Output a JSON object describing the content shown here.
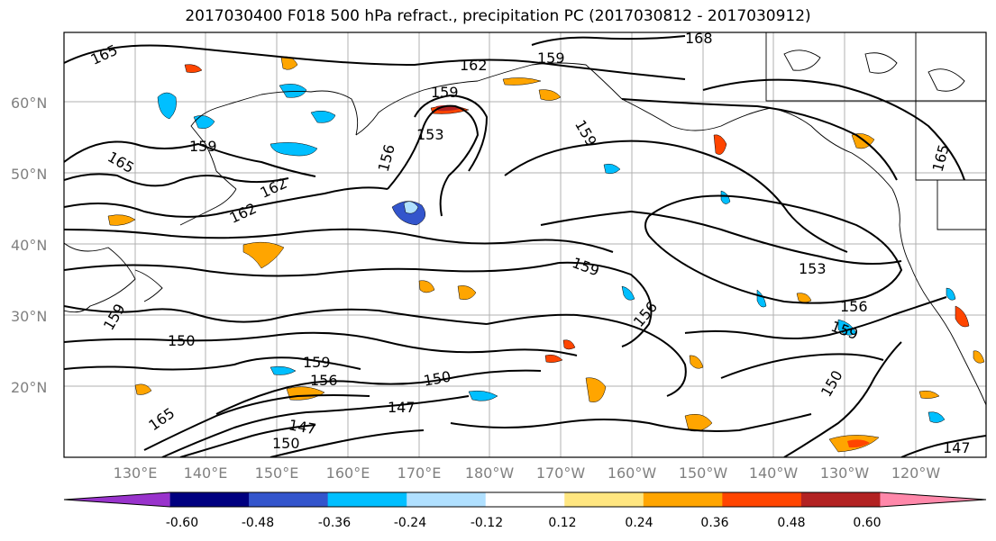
{
  "title": "2017030400 F018 500 hPa refract., precipitation PC (2017030812 - 2017030912)",
  "lat_labels": [
    "60°N",
    "50°N",
    "40°N",
    "30°N",
    "20°N"
  ],
  "lon_labels": [
    "130°E",
    "140°E",
    "150°E",
    "160°E",
    "170°E",
    "180°W",
    "170°W",
    "160°W",
    "150°W",
    "140°W",
    "130°W",
    "120°W"
  ],
  "colorbar": {
    "colors": [
      "#9933cc",
      "#000080",
      "#3355cc",
      "#00bfff",
      "#b0e0ff",
      "#ffffff",
      "#ffe680",
      "#ffa500",
      "#ff4500",
      "#b22222",
      "#ff88aa"
    ],
    "tick_labels": [
      "-0.60",
      "-0.48",
      "-0.36",
      "-0.24",
      "-0.12",
      "0.12",
      "0.24",
      "0.36",
      "0.48",
      "0.60"
    ]
  },
  "contour_labels": [
    "165",
    "162",
    "165",
    "159",
    "159",
    "153",
    "156",
    "159",
    "165",
    "162",
    "162",
    "159",
    "150",
    "159",
    "156",
    "150",
    "147",
    "147",
    "150",
    "159",
    "153",
    "156",
    "159",
    "150",
    "147",
    "165",
    "159",
    "156",
    "168"
  ]
}
